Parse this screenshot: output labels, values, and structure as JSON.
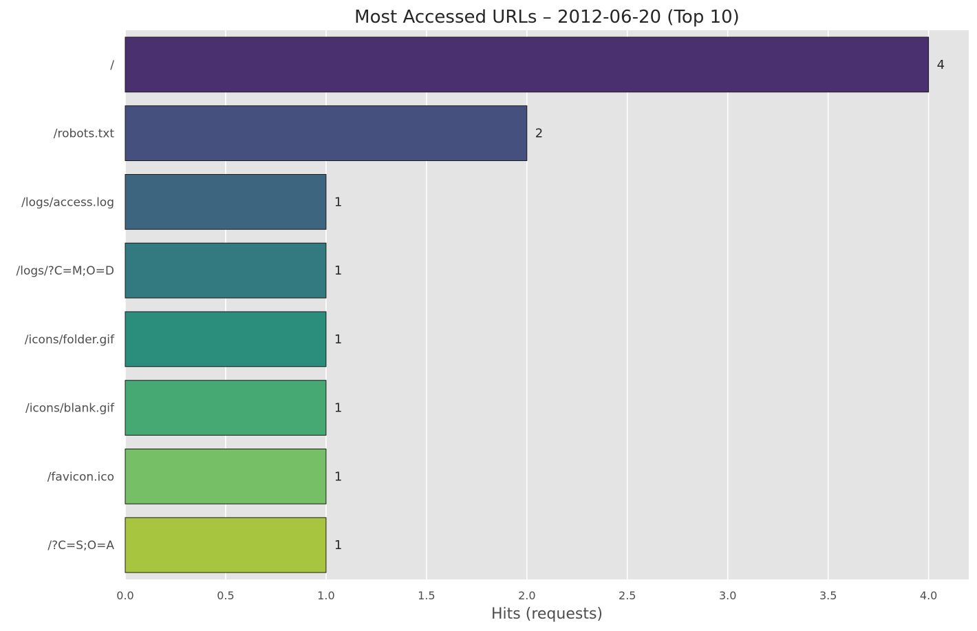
{
  "chart_data": {
    "type": "bar",
    "orientation": "horizontal",
    "title": "Most Accessed URLs – 2012-06-20 (Top 10)",
    "xlabel": "Hits (requests)",
    "ylabel": "",
    "xlim": [
      0,
      4.2
    ],
    "x_ticks": [
      "0.0",
      "0.5",
      "1.0",
      "1.5",
      "2.0",
      "2.5",
      "3.0",
      "3.5",
      "4.0"
    ],
    "grid": true,
    "categories": [
      "/",
      "/robots.txt",
      "/logs/access.log",
      "/logs/?C=M;O=D",
      "/icons/folder.gif",
      "/icons/blank.gif",
      "/favicon.ico",
      "/?C=S;O=A"
    ],
    "values": [
      4,
      2,
      1,
      1,
      1,
      1,
      1,
      1
    ],
    "data_labels": [
      "4",
      "2",
      "1",
      "1",
      "1",
      "1",
      "1",
      "1"
    ],
    "colors": [
      "#4a306f",
      "#46507e",
      "#3d6580",
      "#327980",
      "#2b8d7c",
      "#46a973",
      "#76bf66",
      "#a8c540"
    ],
    "background_color": "#e4e4e4"
  }
}
